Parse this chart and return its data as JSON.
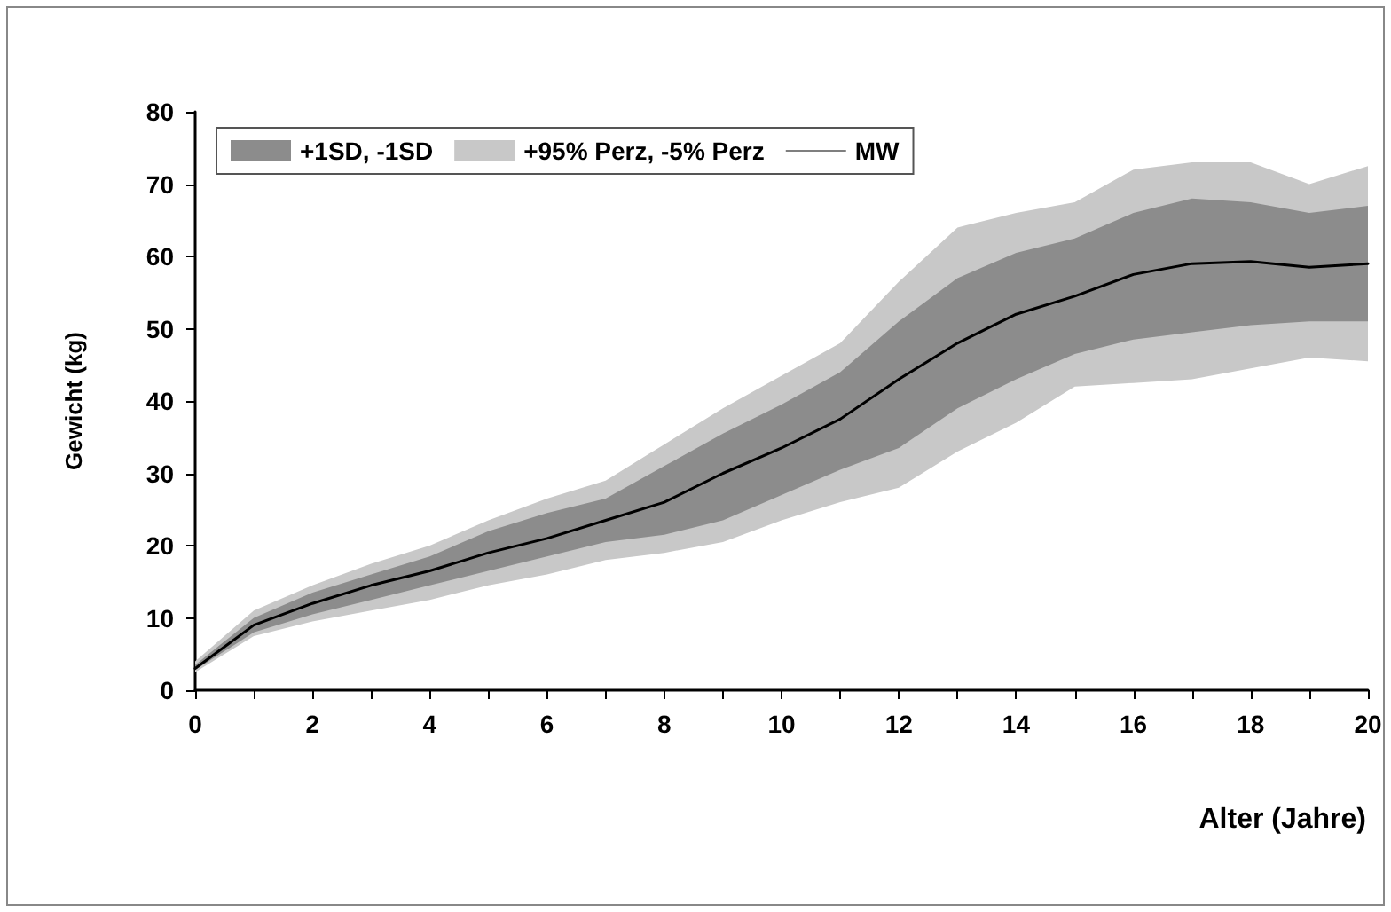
{
  "chart_data": {
    "type": "line",
    "xlabel": "Alter (Jahre)",
    "ylabel": "Gewicht (kg)",
    "x": [
      0,
      1,
      2,
      3,
      4,
      5,
      6,
      7,
      8,
      9,
      10,
      11,
      12,
      13,
      14,
      15,
      16,
      17,
      18,
      19,
      20
    ],
    "series": [
      {
        "name": "+1SD, -1SD",
        "type": "line",
        "color": "#8c8c8c",
        "values": [
          null,
          null,
          null,
          null,
          null,
          null,
          null,
          null,
          null,
          null,
          null,
          null,
          null,
          null,
          null,
          null,
          null,
          null,
          null,
          null,
          null
        ],
        "lower": [
          2.8,
          8,
          10.5,
          12.5,
          14.5,
          16.5,
          18.5,
          20.5,
          21.5,
          23.5,
          27,
          30.5,
          33.5,
          39,
          43,
          46.5,
          48.5,
          49.5,
          50.5,
          51,
          51
        ],
        "upper": [
          3.5,
          10,
          13.5,
          16,
          18.5,
          22,
          24.5,
          26.5,
          31,
          35.5,
          39.5,
          44,
          51,
          57,
          60.5,
          62.5,
          66,
          68,
          67.5,
          66,
          67
        ]
      },
      {
        "name": "+95% Perz, -5% Perz",
        "type": "line",
        "color": "#c8c8c8",
        "values": [
          null,
          null,
          null,
          null,
          null,
          null,
          null,
          null,
          null,
          null,
          null,
          null,
          null,
          null,
          null,
          null,
          null,
          null,
          null,
          null,
          null
        ],
        "lower": [
          2.5,
          7.5,
          9.5,
          11,
          12.5,
          14.5,
          16,
          18,
          19,
          20.5,
          23.5,
          26,
          28,
          33,
          37,
          42,
          42.5,
          43,
          44.5,
          46,
          45.5
        ],
        "upper": [
          4,
          11,
          14.5,
          17.5,
          20,
          23.5,
          26.5,
          29,
          34,
          39,
          43.5,
          48,
          56.5,
          64,
          66,
          67.5,
          72,
          73,
          73,
          70,
          72.5
        ]
      },
      {
        "name": "MW",
        "type": "line",
        "color": "#000000",
        "values": [
          3,
          9,
          12,
          14.5,
          16.5,
          19,
          21,
          23.5,
          26,
          30,
          33.5,
          37.5,
          43,
          48,
          52,
          54.5,
          57.5,
          59,
          59.3,
          58.5,
          59
        ]
      }
    ],
    "xlim": [
      0,
      20
    ],
    "xticks": [
      0,
      {
        "value": 1,
        "label": null
      },
      2,
      {
        "value": 3,
        "label": null
      },
      4,
      {
        "value": 5,
        "label": null
      },
      6,
      {
        "value": 7,
        "label": null
      },
      8,
      {
        "value": 9,
        "label": null
      },
      10,
      {
        "value": 11,
        "label": null
      },
      12,
      {
        "value": 13,
        "label": null
      },
      14,
      {
        "value": 15,
        "label": null
      },
      16,
      {
        "value": 17,
        "label": null
      },
      18,
      {
        "value": 19,
        "label": null
      },
      20
    ],
    "ylim": [
      0,
      80
    ],
    "yticks": [
      0,
      10,
      20,
      30,
      40,
      50,
      60,
      70,
      80
    ],
    "grid": false,
    "legend": "top left",
    "marker": "none",
    "line_style": "solid"
  }
}
